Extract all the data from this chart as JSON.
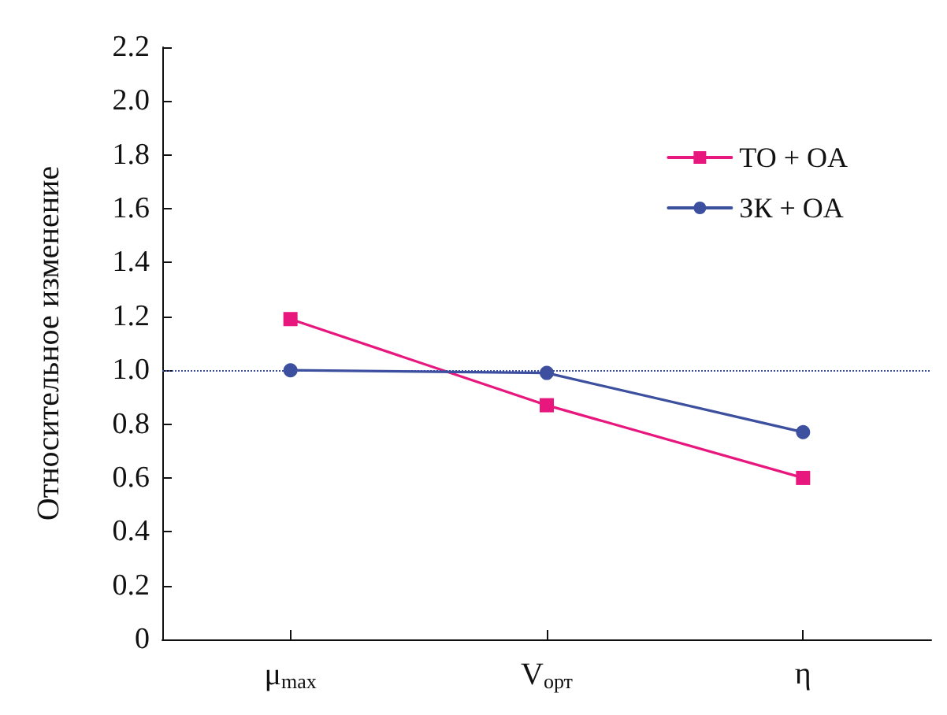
{
  "chart_data": {
    "type": "line",
    "ylabel": "Относительное изменение",
    "categories": [
      "μ$_{max}$",
      "V$_{орт}$",
      "η"
    ],
    "series": [
      {
        "name": "TO + OA",
        "color": "#e8177d",
        "marker": "square",
        "values": [
          1.19,
          0.87,
          0.6
        ]
      },
      {
        "name": "ЗК + OA",
        "color": "#3d4f9f",
        "marker": "circle",
        "values": [
          1.0,
          0.99,
          0.77
        ]
      }
    ],
    "ylim": [
      0,
      2.2
    ],
    "yticks": [
      0,
      0.2,
      0.4,
      0.6,
      0.8,
      {
        "value": 1,
        "label": "1.0"
      },
      1.2,
      1.4,
      1.6,
      1.8,
      {
        "value": 2,
        "label": "2.0"
      },
      2.2
    ],
    "ref_lines": [
      {
        "axis": "y",
        "value": 1,
        "color": "#3d4f9f",
        "line_style": "dotted"
      }
    ],
    "grid": false,
    "legend": "top right",
    "line_style": "solid"
  }
}
